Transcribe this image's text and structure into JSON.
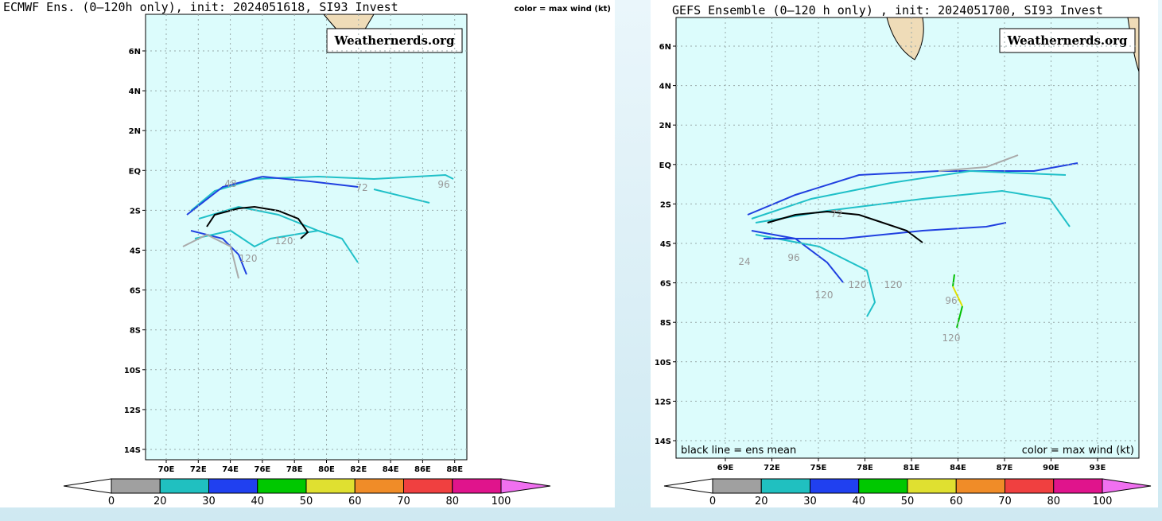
{
  "panels": [
    {
      "title": "ECMWF Ens. (0–120h only), init: 2024051618, SI93 Invest",
      "legend_note": "color = max wind (kt)",
      "watermark": "Weathernerds.org",
      "lat_labels": [
        "6N",
        "4N",
        "2N",
        "EQ",
        "2S",
        "4S",
        "6S",
        "8S",
        "10S",
        "12S",
        "14S"
      ],
      "lon_labels": [
        "70E",
        "72E",
        "74E",
        "76E",
        "78E",
        "80E",
        "82E",
        "84E",
        "86E",
        "88E"
      ],
      "track_labels": [
        "96",
        "72",
        "120",
        "120",
        "48"
      ],
      "colorbar_labels": [
        0,
        20,
        30,
        40,
        50,
        60,
        70,
        80,
        100
      ]
    },
    {
      "title": "GEFS Ensemble (0–120 h only) , init: 2024051700, SI93 Invest",
      "watermark": "Weathernerds.org",
      "footer_left": "black line = ens mean",
      "footer_right": "color = max wind (kt)",
      "lat_labels": [
        "6N",
        "4N",
        "2N",
        "EQ",
        "2S",
        "4S",
        "6S",
        "8S",
        "10S",
        "12S",
        "14S"
      ],
      "lon_labels": [
        "69E",
        "72E",
        "75E",
        "78E",
        "81E",
        "84E",
        "87E",
        "90E",
        "93E"
      ],
      "track_labels": [
        "24",
        "96",
        "72",
        "120",
        "120",
        "120",
        "96",
        "120"
      ],
      "colorbar_labels": [
        0,
        20,
        30,
        40,
        50,
        60,
        70,
        80,
        100
      ]
    }
  ]
}
